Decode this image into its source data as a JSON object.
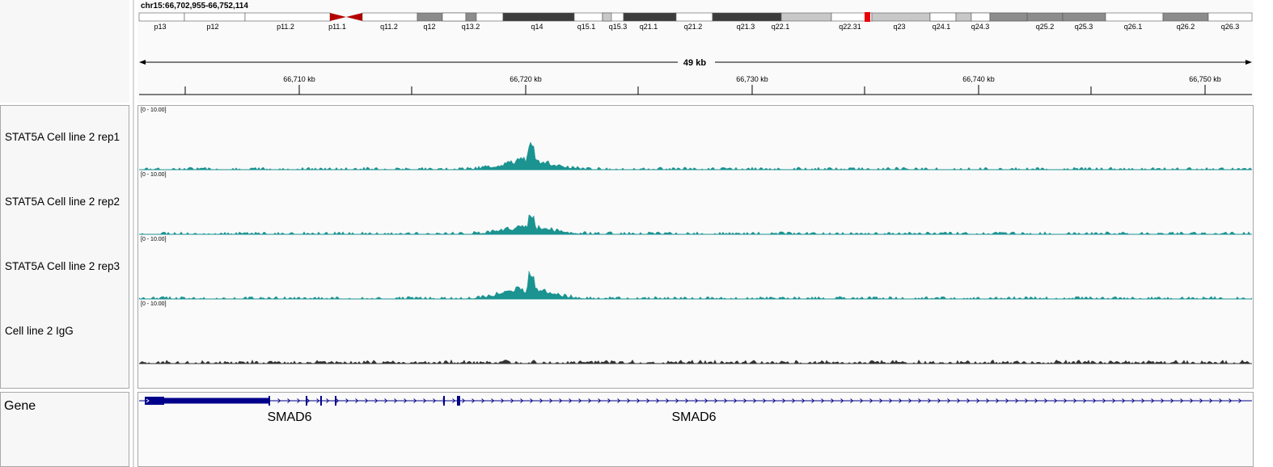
{
  "locus": "chr15:66,702,955-66,752,114",
  "ideogram": {
    "bands": [
      {
        "name": "p13",
        "stain": "gneg"
      },
      {
        "name": "p12",
        "stain": "gneg"
      },
      {
        "name": "p11.2",
        "stain": "gneg"
      },
      {
        "name": "p11.1",
        "stain": "acen"
      },
      {
        "name": "q11.2",
        "stain": "gneg"
      },
      {
        "name": "q12",
        "stain": "gpos50"
      },
      {
        "name": "q13.2",
        "stain": "gneg"
      },
      {
        "name": "q14",
        "stain": "gpos75"
      },
      {
        "name": "q15.1",
        "stain": "gneg"
      },
      {
        "name": "q15.3",
        "stain": "gneg"
      },
      {
        "name": "q21.1",
        "stain": "gpos75"
      },
      {
        "name": "q21.2",
        "stain": "gneg"
      },
      {
        "name": "q21.3",
        "stain": "gpos75"
      },
      {
        "name": "q22.1",
        "stain": "gpos25"
      },
      {
        "name": "q22.31",
        "stain": "gneg"
      },
      {
        "name": "q23",
        "stain": "gpos25"
      },
      {
        "name": "q24.1",
        "stain": "gneg"
      },
      {
        "name": "q24.3",
        "stain": "gneg"
      },
      {
        "name": "q25.2",
        "stain": "gpos50"
      },
      {
        "name": "q25.3",
        "stain": "gpos50"
      },
      {
        "name": "q26.1",
        "stain": "gneg"
      },
      {
        "name": "q26.2",
        "stain": "gpos50"
      },
      {
        "name": "q26.3",
        "stain": "gneg"
      }
    ],
    "current_region_color": "#e8000b"
  },
  "ruler": {
    "span_label": "49 kb",
    "ticks": [
      "66,710 kb",
      "66,720 kb",
      "66,730 kb",
      "66,740 kb",
      "66,750 kb"
    ]
  },
  "tracks": [
    {
      "name": "STAT5A Cell line 2 rep1",
      "range": "[0 - 10.00]",
      "color": "#1a9391",
      "peak": "high"
    },
    {
      "name": "STAT5A Cell line 2 rep2",
      "range": "[0 - 10.00]",
      "color": "#1a9391",
      "peak": "mid"
    },
    {
      "name": "STAT5A Cell line 2 rep3",
      "range": "[0 - 10.00]",
      "color": "#1a9391",
      "peak": "high"
    },
    {
      "name": "Cell line 2 IgG",
      "range": "[0 - 10.00]",
      "color": "#333333",
      "peak": "none"
    }
  ],
  "gene_track": {
    "label": "Gene",
    "color": "#00008b",
    "gene_names": [
      "SMAD6",
      "SMAD6"
    ]
  }
}
